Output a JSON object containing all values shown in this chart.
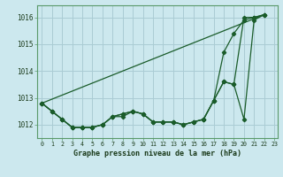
{
  "title": "Graphe pression niveau de la mer (hPa)",
  "bg_color": "#cce8ee",
  "grid_color": "#aaccd4",
  "line_color": "#1a5c2a",
  "x_min": -0.5,
  "x_max": 23.3,
  "y_min": 1011.5,
  "y_max": 1016.45,
  "yticks": [
    1012,
    1013,
    1014,
    1015,
    1016
  ],
  "xticks": [
    0,
    1,
    2,
    3,
    4,
    5,
    6,
    7,
    8,
    9,
    10,
    11,
    12,
    13,
    14,
    15,
    16,
    17,
    18,
    19,
    20,
    21,
    22,
    23
  ],
  "lines": [
    {
      "x": [
        0,
        22
      ],
      "y": [
        1012.8,
        1016.1
      ]
    },
    {
      "x": [
        0,
        1,
        2,
        3,
        4,
        5,
        6,
        7,
        8,
        9,
        10,
        11,
        12,
        13,
        14,
        15,
        16,
        17,
        18,
        19,
        20,
        21,
        22
      ],
      "y": [
        1012.8,
        1012.5,
        1012.2,
        1011.9,
        1011.9,
        1011.9,
        1012.0,
        1012.3,
        1012.4,
        1012.5,
        1012.4,
        1012.1,
        1012.1,
        1012.1,
        1012.0,
        1012.1,
        1012.2,
        1012.9,
        1013.6,
        1013.5,
        1012.2,
        1015.9,
        1016.1
      ]
    },
    {
      "x": [
        0,
        1,
        2,
        3,
        4,
        5,
        6,
        7,
        8,
        9,
        10,
        11,
        12,
        13,
        14,
        15,
        16,
        17,
        18,
        19,
        20,
        21,
        22
      ],
      "y": [
        1012.8,
        1012.5,
        1012.2,
        1011.9,
        1011.9,
        1011.9,
        1012.0,
        1012.3,
        1012.4,
        1012.5,
        1012.4,
        1012.1,
        1012.1,
        1012.1,
        1012.0,
        1012.1,
        1012.2,
        1012.9,
        1014.7,
        1015.4,
        1015.9,
        1016.0,
        1016.1
      ]
    },
    {
      "x": [
        0,
        1,
        2,
        3,
        4,
        5,
        6,
        7,
        8,
        9,
        10,
        11,
        12,
        13,
        14,
        15,
        16,
        17,
        18,
        19,
        20,
        21,
        22
      ],
      "y": [
        1012.8,
        1012.5,
        1012.2,
        1011.9,
        1011.9,
        1011.9,
        1012.0,
        1012.3,
        1012.3,
        1012.5,
        1012.4,
        1012.1,
        1012.1,
        1012.1,
        1012.0,
        1012.1,
        1012.2,
        1012.9,
        1013.6,
        1013.5,
        1016.0,
        1016.0,
        1016.1
      ]
    }
  ]
}
